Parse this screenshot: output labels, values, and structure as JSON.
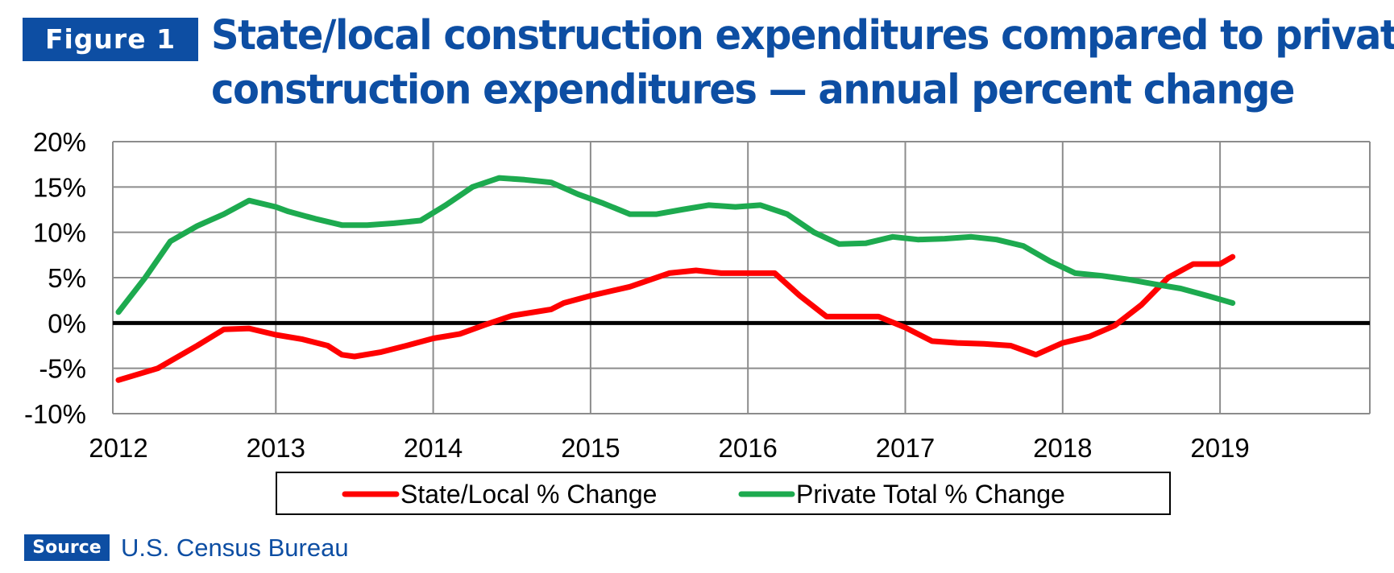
{
  "figure_label": "Figure 1",
  "title_lines": [
    "State/local construction expenditures compared to private",
    "construction expenditures — annual percent change"
  ],
  "source_label": "Source",
  "source_text": "U.S. Census Bureau",
  "colors": {
    "accent": "#0d4ea3",
    "state_local": "#ff0000",
    "private": "#1daa4f",
    "zero_line": "#000000",
    "grid": "#8c8c8c"
  },
  "chart_data": {
    "type": "line",
    "title": "State/local construction expenditures compared to private construction expenditures — annual percent change",
    "xlabel": "",
    "ylabel": "",
    "x_ticks": [
      "2012",
      "2013",
      "2014",
      "2015",
      "2016",
      "2017",
      "2018",
      "2019"
    ],
    "y_ticks": [
      "20%",
      "15%",
      "10%",
      "5%",
      "0%",
      "-5%",
      "-10%"
    ],
    "xlim": [
      2012,
      2020
    ],
    "ylim": [
      -10,
      20
    ],
    "grid": true,
    "legend": "bottom",
    "series": [
      {
        "name": "State/Local % Change",
        "color": "#ff0000",
        "x": [
          2012.0,
          2012.25,
          2012.5,
          2012.67,
          2012.83,
          2013.0,
          2013.17,
          2013.33,
          2013.42,
          2013.5,
          2013.67,
          2013.83,
          2014.0,
          2014.17,
          2014.33,
          2014.5,
          2014.75,
          2014.83,
          2015.0,
          2015.25,
          2015.5,
          2015.67,
          2015.83,
          2016.0,
          2016.17,
          2016.33,
          2016.5,
          2016.67,
          2016.83,
          2017.0,
          2017.17,
          2017.33,
          2017.5,
          2017.67,
          2017.83,
          2018.0,
          2018.17,
          2018.33,
          2018.5,
          2018.67,
          2018.83,
          2019.0,
          2019.08
        ],
        "values": [
          -6.3,
          -5.0,
          -2.5,
          -0.7,
          -0.6,
          -1.3,
          -1.8,
          -2.5,
          -3.5,
          -3.7,
          -3.2,
          -2.5,
          -1.7,
          -1.2,
          -0.2,
          0.8,
          1.5,
          2.2,
          3.0,
          4.0,
          5.5,
          5.8,
          5.5,
          5.5,
          5.5,
          3.0,
          0.7,
          0.7,
          0.7,
          -0.5,
          -2.0,
          -2.2,
          -2.3,
          -2.5,
          -3.5,
          -2.2,
          -1.5,
          -0.3,
          2.0,
          5.0,
          6.5,
          6.5,
          7.3
        ]
      },
      {
        "name": "Private Total % Change",
        "color": "#1daa4f",
        "x": [
          2012.0,
          2012.17,
          2012.33,
          2012.5,
          2012.67,
          2012.83,
          2013.0,
          2013.08,
          2013.25,
          2013.42,
          2013.58,
          2013.75,
          2013.92,
          2014.08,
          2014.25,
          2014.42,
          2014.58,
          2014.75,
          2014.92,
          2015.08,
          2015.25,
          2015.42,
          2015.58,
          2015.75,
          2015.92,
          2016.08,
          2016.25,
          2016.42,
          2016.58,
          2016.75,
          2016.92,
          2017.08,
          2017.25,
          2017.42,
          2017.58,
          2017.75,
          2017.92,
          2018.08,
          2018.25,
          2018.42,
          2018.58,
          2018.75,
          2018.92,
          2019.08
        ],
        "values": [
          1.2,
          5.0,
          9.0,
          10.7,
          12.0,
          13.5,
          12.8,
          12.3,
          11.5,
          10.8,
          10.8,
          11.0,
          11.3,
          13.0,
          15.0,
          16.0,
          15.8,
          15.5,
          14.2,
          13.2,
          12.0,
          12.0,
          12.5,
          13.0,
          12.8,
          13.0,
          12.0,
          10.0,
          8.7,
          8.8,
          9.5,
          9.2,
          9.3,
          9.5,
          9.2,
          8.5,
          6.8,
          5.5,
          5.2,
          4.8,
          4.3,
          3.8,
          3.0,
          2.2
        ]
      }
    ]
  }
}
